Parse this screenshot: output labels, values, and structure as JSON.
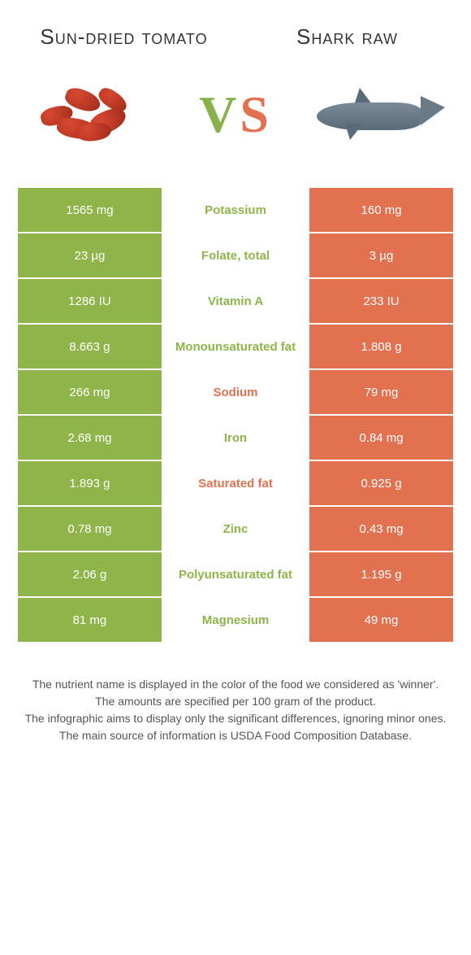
{
  "header": {
    "left_title": "Sun-dried tomato",
    "right_title": "Shark raw",
    "vs_v": "V",
    "vs_s": "S"
  },
  "colors": {
    "left": "#8fb44a",
    "right": "#e2714f",
    "mid_bg": "#ffffff",
    "page_bg": "#ffffff"
  },
  "rows": [
    {
      "left": "1565 mg",
      "nutrient": "Potassium",
      "right": "160 mg",
      "winner": "left"
    },
    {
      "left": "23 µg",
      "nutrient": "Folate, total",
      "right": "3 µg",
      "winner": "left"
    },
    {
      "left": "1286 IU",
      "nutrient": "Vitamin A",
      "right": "233 IU",
      "winner": "left"
    },
    {
      "left": "8.663 g",
      "nutrient": "Monounsaturated fat",
      "right": "1.808 g",
      "winner": "left"
    },
    {
      "left": "266 mg",
      "nutrient": "Sodium",
      "right": "79 mg",
      "winner": "right"
    },
    {
      "left": "2.68 mg",
      "nutrient": "Iron",
      "right": "0.84 mg",
      "winner": "left"
    },
    {
      "left": "1.893 g",
      "nutrient": "Saturated fat",
      "right": "0.925 g",
      "winner": "right"
    },
    {
      "left": "0.78 mg",
      "nutrient": "Zinc",
      "right": "0.43 mg",
      "winner": "left"
    },
    {
      "left": "2.06 g",
      "nutrient": "Polyunsaturated fat",
      "right": "1.195 g",
      "winner": "left"
    },
    {
      "left": "81 mg",
      "nutrient": "Magnesium",
      "right": "49 mg",
      "winner": "left"
    }
  ],
  "footer": {
    "line1": "The nutrient name is displayed in the color of the food we considered as 'winner'.",
    "line2": "The amounts are specified per 100 gram of the product.",
    "line3": "The infographic aims to display only the significant differences, ignoring minor ones.",
    "line4": "The main source of information is USDA Food Composition Database."
  }
}
